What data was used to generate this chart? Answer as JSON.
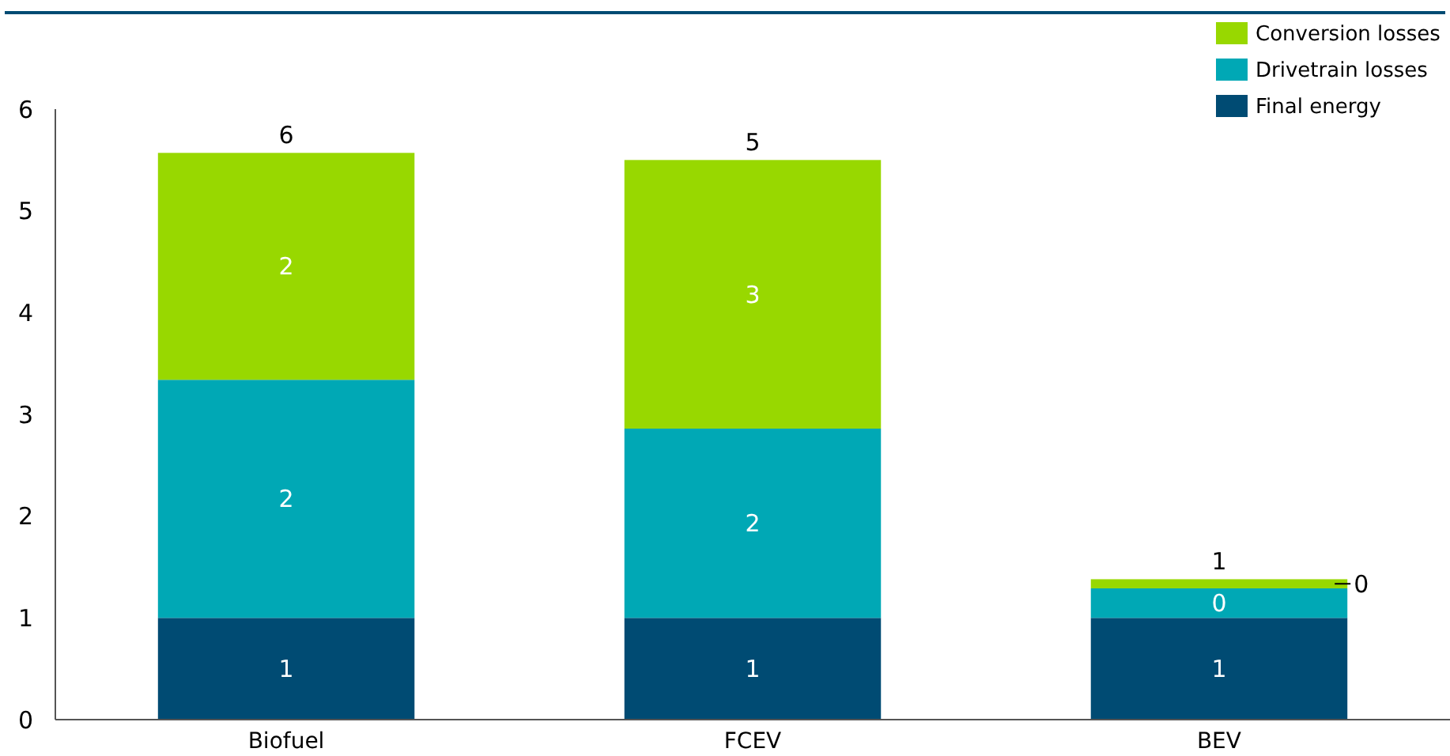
{
  "chart_data": {
    "type": "bar",
    "stacked": true,
    "categories": [
      "Biofuel",
      "FCEV",
      "BEV"
    ],
    "series": [
      {
        "name": "Final energy",
        "color": "#004b73",
        "values": [
          1.0,
          1.0,
          1.0
        ],
        "value_labels": [
          "1",
          "1",
          "1"
        ]
      },
      {
        "name": "Drivetrain losses",
        "color": "#00a8b5",
        "values": [
          2.34,
          1.86,
          0.29
        ],
        "value_labels": [
          "2",
          "2",
          "0"
        ]
      },
      {
        "name": "Conversion losses",
        "color": "#98d800",
        "values": [
          2.23,
          2.64,
          0.09
        ],
        "value_labels": [
          "2",
          "3",
          "0"
        ]
      }
    ],
    "totals": [
      "6",
      "5",
      "1"
    ],
    "ylim": [
      0,
      6
    ],
    "yticks": [
      0,
      1,
      2,
      3,
      4,
      5,
      6
    ],
    "grid": false,
    "legend": "top right"
  }
}
